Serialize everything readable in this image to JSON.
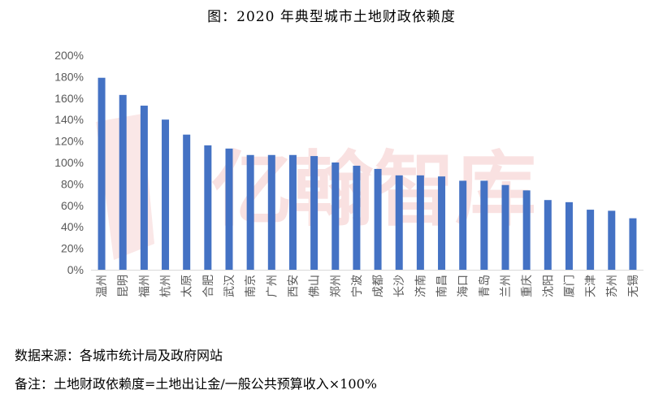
{
  "title": "图：2020 年典型城市土地财政依赖度",
  "watermark": "亿翰智库",
  "source": "数据来源：各城市统计局及政府网站",
  "note": "备注：土地财政依赖度=土地出让金/一般公共预算收入×100%",
  "colors": {
    "bar": "#4472C4",
    "axis": "#d9d9d9",
    "watermark": "#f4c9c9"
  },
  "chart_data": {
    "type": "bar",
    "categories": [
      "温州",
      "昆明",
      "福州",
      "杭州",
      "太原",
      "合肥",
      "武汉",
      "南京",
      "广州",
      "西安",
      "佛山",
      "郑州",
      "宁波",
      "成都",
      "长沙",
      "济南",
      "南昌",
      "海口",
      "青岛",
      "兰州",
      "重庆",
      "沈阳",
      "厦门",
      "天津",
      "苏州",
      "无锡"
    ],
    "values": [
      179,
      163,
      153,
      140,
      126,
      116,
      113,
      107,
      107,
      107,
      106,
      100,
      97,
      94,
      88,
      88,
      87,
      83,
      83,
      79,
      74,
      65,
      63,
      56,
      55,
      48
    ],
    "unit": "%",
    "ylim": [
      0,
      200
    ],
    "yticks": [
      "0%",
      "20%",
      "40%",
      "60%",
      "80%",
      "100%",
      "120%",
      "140%",
      "160%",
      "180%",
      "200%"
    ],
    "grid": false,
    "legend": false
  }
}
